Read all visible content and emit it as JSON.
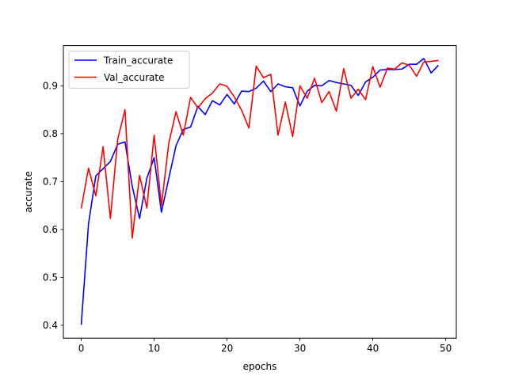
{
  "chart_data": {
    "type": "line",
    "title": "",
    "xlabel": "epochs",
    "ylabel": "accurate",
    "xlim": [
      -2.45,
      51.45
    ],
    "ylim": [
      0.373,
      0.984
    ],
    "xticks": [
      0,
      10,
      20,
      30,
      40,
      50
    ],
    "yticks": [
      0.4,
      0.5,
      0.6,
      0.7,
      0.8,
      0.9
    ],
    "grid": false,
    "legend_position": "top-left",
    "x": [
      0,
      1,
      2,
      3,
      4,
      5,
      6,
      7,
      8,
      9,
      10,
      11,
      12,
      13,
      14,
      15,
      16,
      17,
      18,
      19,
      20,
      21,
      22,
      23,
      24,
      25,
      26,
      27,
      28,
      29,
      30,
      31,
      32,
      33,
      34,
      35,
      36,
      37,
      38,
      39,
      40,
      41,
      42,
      43,
      44,
      45,
      46,
      47,
      48,
      49
    ],
    "series": [
      {
        "name": "Train_accurate",
        "color": "#0000ff",
        "values": [
          0.401,
          0.612,
          0.712,
          0.727,
          0.742,
          0.778,
          0.783,
          0.69,
          0.623,
          0.707,
          0.75,
          0.636,
          0.706,
          0.775,
          0.809,
          0.814,
          0.857,
          0.84,
          0.869,
          0.86,
          0.882,
          0.862,
          0.889,
          0.888,
          0.895,
          0.91,
          0.888,
          0.904,
          0.898,
          0.896,
          0.858,
          0.889,
          0.901,
          0.9,
          0.911,
          0.907,
          0.904,
          0.901,
          0.88,
          0.908,
          0.918,
          0.933,
          0.934,
          0.934,
          0.935,
          0.945,
          0.945,
          0.957,
          0.927,
          0.943
        ]
      },
      {
        "name": "Val_accurate",
        "color": "#ff0000",
        "values": [
          0.644,
          0.728,
          0.67,
          0.773,
          0.623,
          0.788,
          0.85,
          0.582,
          0.713,
          0.645,
          0.797,
          0.65,
          0.779,
          0.846,
          0.797,
          0.876,
          0.854,
          0.873,
          0.885,
          0.904,
          0.899,
          0.877,
          0.849,
          0.812,
          0.941,
          0.917,
          0.924,
          0.797,
          0.866,
          0.794,
          0.9,
          0.874,
          0.916,
          0.865,
          0.888,
          0.847,
          0.936,
          0.874,
          0.893,
          0.871,
          0.94,
          0.897,
          0.937,
          0.935,
          0.948,
          0.943,
          0.92,
          0.95,
          0.951,
          0.953
        ]
      }
    ]
  }
}
